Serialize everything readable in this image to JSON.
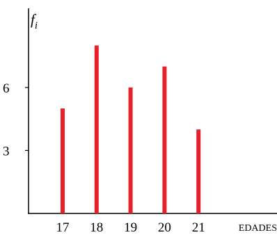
{
  "chart_data": {
    "type": "bar",
    "categories": [
      "17",
      "18",
      "19",
      "20",
      "21"
    ],
    "values": [
      5,
      8,
      6,
      7,
      4
    ],
    "xlabel": "EDADES",
    "ylabel_main": "f",
    "ylabel_sub": "i",
    "yticks": [
      3,
      6
    ],
    "ylim": [
      0,
      10
    ],
    "bar_color": "#e8202a",
    "grid": false
  }
}
